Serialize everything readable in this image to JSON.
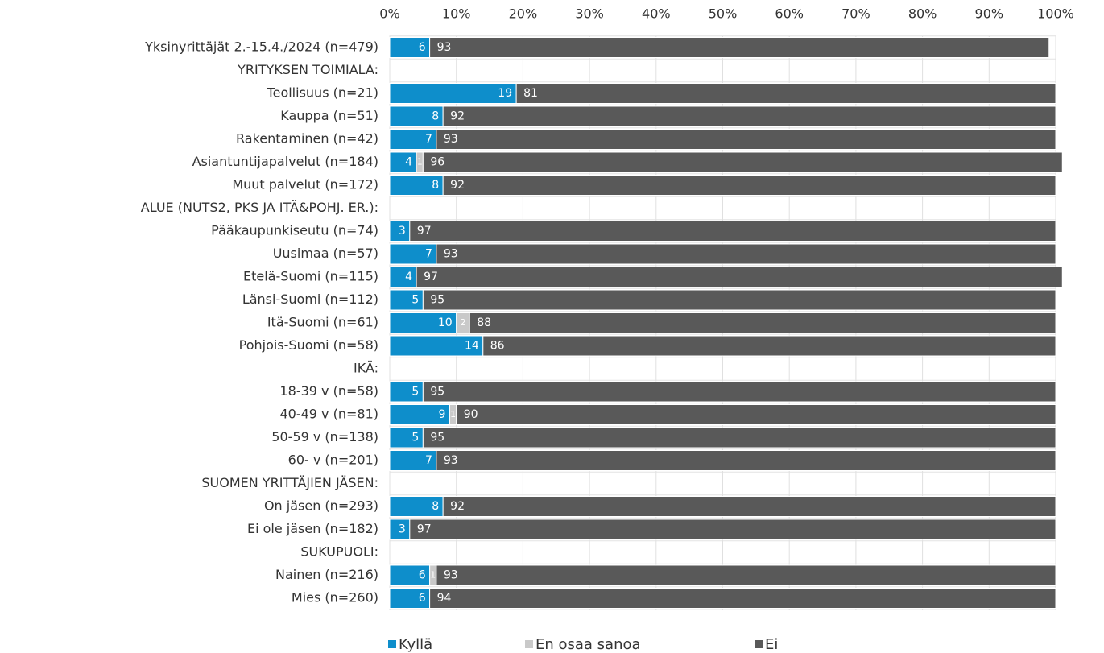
{
  "chart_data": {
    "type": "stacked_barh",
    "categories": [
      "Yksinyrittäjät 2.-15.4./2024 (n=479)",
      "YRITYKSEN TOIMIALA:",
      "Teollisuus (n=21)",
      "Kauppa (n=51)",
      "Rakentaminen (n=42)",
      "Asiantuntijapalvelut (n=184)",
      "Muut palvelut (n=172)",
      "ALUE (NUTS2, PKS JA ITÄ&POHJ. ER.):",
      "Pääkaupunkiseutu (n=74)",
      "Uusimaa (n=57)",
      "Etelä-Suomi (n=115)",
      "Länsi-Suomi (n=112)",
      "Itä-Suomi (n=61)",
      "Pohjois-Suomi (n=58)",
      "IKÄ:",
      "18-39 v (n=58)",
      "40-49 v (n=81)",
      "50-59 v (n=138)",
      "60- v (n=201)",
      "SUOMEN YRITTÄJIEN JÄSEN:",
      "On jäsen (n=293)",
      "Ei ole jäsen (n=182)",
      "SUKUPUOLI:",
      "Nainen (n=216)",
      "Mies (n=260)"
    ],
    "series": [
      {
        "name": "Kyllä",
        "color": "#0e8ecb",
        "values": [
          6,
          null,
          19,
          8,
          7,
          4,
          8,
          null,
          3,
          7,
          4,
          5,
          10,
          14,
          null,
          5,
          9,
          5,
          7,
          null,
          8,
          3,
          null,
          6,
          6
        ]
      },
      {
        "name": "En osaa sanoa",
        "color": "#c9c9c9",
        "values": [
          0,
          null,
          0,
          0,
          0,
          1,
          0,
          null,
          0,
          0,
          0,
          0,
          2,
          0,
          null,
          0,
          1,
          0,
          0,
          null,
          0,
          0,
          null,
          1,
          0
        ]
      },
      {
        "name": "Ei",
        "color": "#595959",
        "values": [
          93,
          null,
          81,
          92,
          93,
          96,
          92,
          null,
          97,
          93,
          97,
          95,
          88,
          86,
          null,
          95,
          90,
          95,
          93,
          null,
          92,
          97,
          null,
          93,
          94
        ]
      }
    ],
    "xlim": [
      0,
      100
    ],
    "xticks": [
      {
        "value": 0,
        "label": "0%"
      },
      {
        "value": 10,
        "label": "10%"
      },
      {
        "value": 20,
        "label": "20%"
      },
      {
        "value": 30,
        "label": "30%"
      },
      {
        "value": 40,
        "label": "40%"
      },
      {
        "value": 50,
        "label": "50%"
      },
      {
        "value": 60,
        "label": "60%"
      },
      {
        "value": 70,
        "label": "70%"
      },
      {
        "value": 80,
        "label": "80%"
      },
      {
        "value": 90,
        "label": "90%"
      },
      {
        "value": 100,
        "label": "100%"
      }
    ],
    "grid": true,
    "legend": "bottom"
  }
}
